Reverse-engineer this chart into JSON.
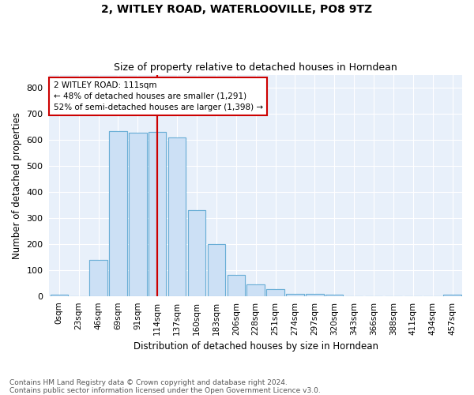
{
  "title1": "2, WITLEY ROAD, WATERLOOVILLE, PO8 9TZ",
  "title2": "Size of property relative to detached houses in Horndean",
  "xlabel": "Distribution of detached houses by size in Horndean",
  "ylabel": "Number of detached properties",
  "bar_color": "#cce0f5",
  "bar_edge_color": "#6aaed6",
  "background_color": "#e8f0fa",
  "grid_color": "#ffffff",
  "annotation_box_color": "#cc0000",
  "vline_color": "#cc0000",
  "fig_background": "#ffffff",
  "categories": [
    "0sqm",
    "23sqm",
    "46sqm",
    "69sqm",
    "91sqm",
    "114sqm",
    "137sqm",
    "160sqm",
    "183sqm",
    "206sqm",
    "228sqm",
    "251sqm",
    "274sqm",
    "297sqm",
    "320sqm",
    "343sqm",
    "366sqm",
    "388sqm",
    "411sqm",
    "434sqm",
    "457sqm"
  ],
  "values": [
    7,
    0,
    140,
    635,
    628,
    630,
    610,
    330,
    200,
    82,
    46,
    28,
    10,
    10,
    6,
    0,
    0,
    0,
    0,
    0,
    6
  ],
  "vline_index": 5,
  "ylim": [
    0,
    850
  ],
  "yticks": [
    0,
    100,
    200,
    300,
    400,
    500,
    600,
    700,
    800
  ],
  "annotation_line1": "2 WITLEY ROAD: 111sqm",
  "annotation_line2": "← 48% of detached houses are smaller (1,291)",
  "annotation_line3": "52% of semi-detached houses are larger (1,398) →",
  "footnote1": "Contains HM Land Registry data © Crown copyright and database right 2024.",
  "footnote2": "Contains public sector information licensed under the Open Government Licence v3.0."
}
